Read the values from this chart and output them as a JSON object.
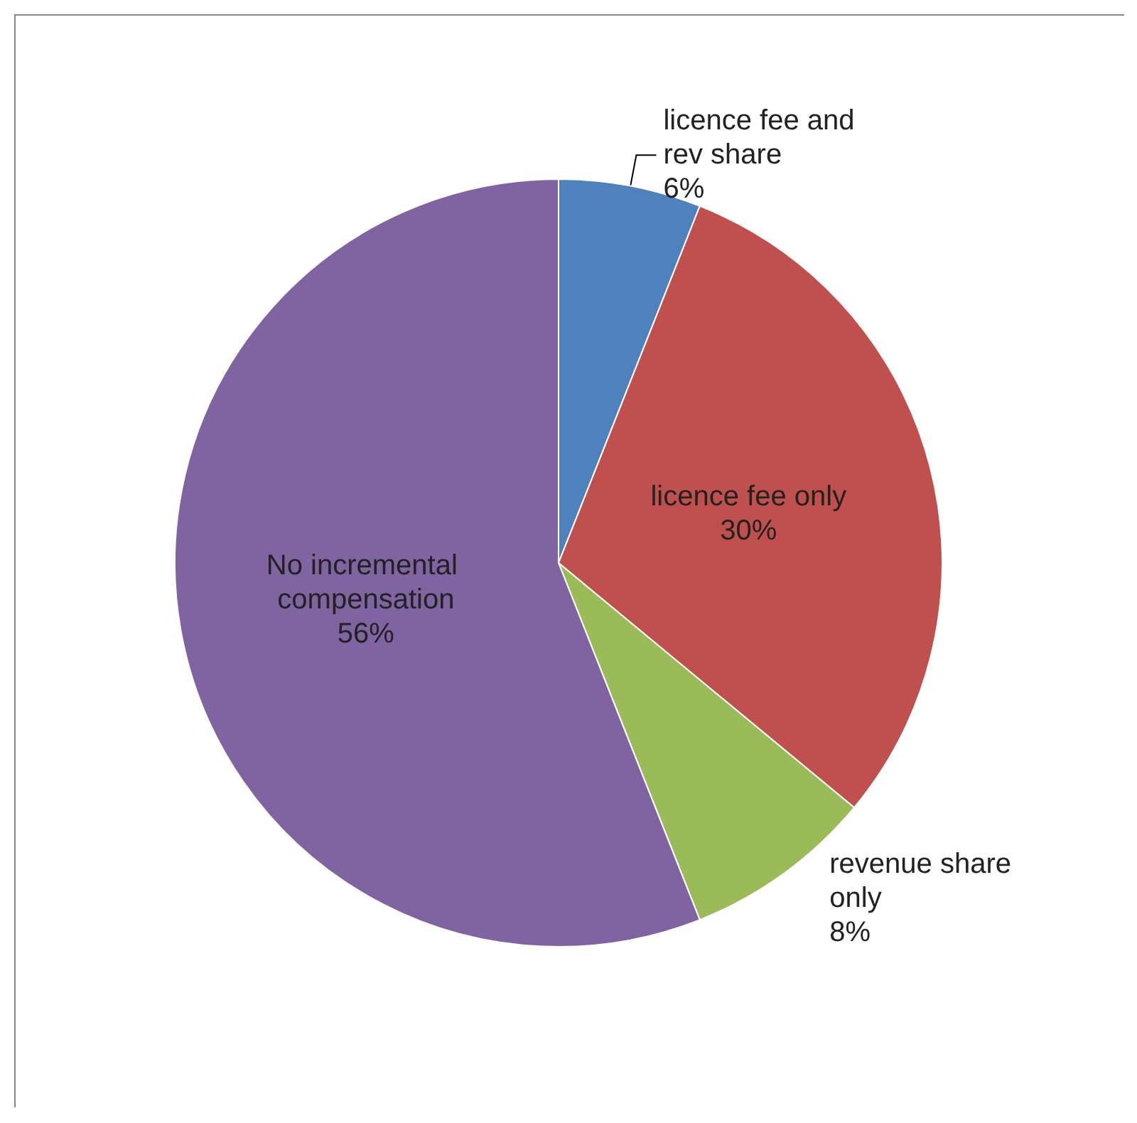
{
  "chart_data": {
    "type": "pie",
    "categories": [
      "licence fee and rev share",
      "licence fee only",
      "revenue share only",
      "No incremental compensation"
    ],
    "values": [
      6,
      30,
      8,
      56
    ],
    "colors": [
      "#4f81bd",
      "#c0504d",
      "#9bbb59",
      "#8064a2"
    ],
    "value_labels": [
      "6%",
      "30%",
      "8%",
      "56%"
    ],
    "legend": false
  }
}
